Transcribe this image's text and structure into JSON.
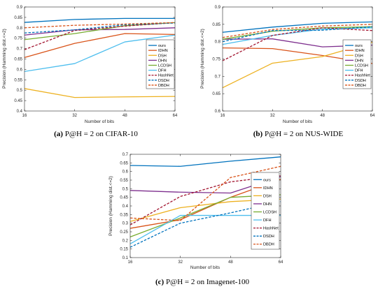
{
  "chart_data": [
    {
      "type": "line",
      "caption_letter": "(a)",
      "caption_text": " P@H = 2 on CIFAR-10",
      "xlabel": "Number of bits",
      "ylabel": "Precision (Hamming dist.<=2)",
      "x": [
        16,
        32,
        48,
        64
      ],
      "xticks": [
        "16",
        "32",
        "48",
        "64"
      ],
      "ylim": [
        0.4,
        0.9
      ],
      "yticks": [
        "0.4",
        "0.45",
        "0.5",
        "0.55",
        "0.6",
        "0.65",
        "0.7",
        "0.75",
        "0.8",
        "0.85",
        "0.9"
      ],
      "legend_position": "right",
      "series": [
        {
          "name": "ours",
          "color": "#0072bd",
          "dash": false,
          "values": [
            0.826,
            0.84,
            0.845,
            0.845
          ]
        },
        {
          "name": "IDHN",
          "color": "#d95319",
          "dash": false,
          "values": [
            0.657,
            0.725,
            0.772,
            0.768
          ]
        },
        {
          "name": "DSH",
          "color": "#edb120",
          "dash": false,
          "values": [
            0.508,
            0.465,
            0.468,
            0.47
          ]
        },
        {
          "name": "DHN",
          "color": "#7e2f8e",
          "dash": false,
          "values": [
            0.765,
            0.79,
            0.792,
            0.8
          ]
        },
        {
          "name": "LCDSH",
          "color": "#77ac30",
          "dash": false,
          "values": [
            0.743,
            0.772,
            0.81,
            0.825
          ]
        },
        {
          "name": "DFH",
          "color": "#4dbeee",
          "dash": false,
          "values": [
            0.59,
            0.628,
            0.732,
            0.765
          ]
        },
        {
          "name": "HashNet",
          "color": "#a2142f",
          "dash": true,
          "values": [
            0.695,
            0.787,
            0.808,
            0.825
          ]
        },
        {
          "name": "DSDH",
          "color": "#0072bd",
          "dash": true,
          "values": [
            0.775,
            0.79,
            0.815,
            0.823
          ]
        },
        {
          "name": "DBDH",
          "color": "#d95319",
          "dash": true,
          "values": [
            0.8,
            0.812,
            0.818,
            0.825
          ]
        }
      ]
    },
    {
      "type": "line",
      "caption_letter": "(b)",
      "caption_text": " P@H = 2 on NUS-WIDE",
      "xlabel": "Number of bits",
      "ylabel": "Precision (Hamming dist.<=2)",
      "x": [
        16,
        32,
        48,
        64
      ],
      "xticks": [
        "16",
        "32",
        "48",
        "64"
      ],
      "ylim": [
        0.6,
        0.9
      ],
      "yticks": [
        "0.6",
        "0.65",
        "0.7",
        "0.75",
        "0.8",
        "0.85",
        "0.9"
      ],
      "legend_position": "right",
      "series": [
        {
          "name": "ours",
          "color": "#0072bd",
          "dash": false,
          "values": [
            0.827,
            0.842,
            0.853,
            0.857
          ]
        },
        {
          "name": "IDHN",
          "color": "#d95319",
          "dash": false,
          "values": [
            0.782,
            0.78,
            0.76,
            0.737
          ]
        },
        {
          "name": "DSH",
          "color": "#edb120",
          "dash": false,
          "values": [
            0.667,
            0.738,
            0.757,
            0.798
          ]
        },
        {
          "name": "DHN",
          "color": "#7e2f8e",
          "dash": false,
          "values": [
            0.807,
            0.808,
            0.785,
            0.79
          ]
        },
        {
          "name": "LCDSH",
          "color": "#77ac30",
          "dash": false,
          "values": [
            0.807,
            0.83,
            0.84,
            0.843
          ]
        },
        {
          "name": "DFH",
          "color": "#4dbeee",
          "dash": false,
          "values": [
            0.792,
            0.818,
            0.836,
            0.84
          ]
        },
        {
          "name": "HashNet",
          "color": "#a2142f",
          "dash": true,
          "values": [
            0.745,
            0.818,
            0.84,
            0.832
          ]
        },
        {
          "name": "DSDH",
          "color": "#0072bd",
          "dash": true,
          "values": [
            0.8,
            0.832,
            0.833,
            0.843
          ]
        },
        {
          "name": "DBDH",
          "color": "#d95319",
          "dash": true,
          "values": [
            0.812,
            0.835,
            0.845,
            0.85
          ]
        }
      ]
    },
    {
      "type": "line",
      "caption_letter": "(c)",
      "caption_text": " P@H = 2 on Imagenet-100",
      "xlabel": "Number of bits",
      "ylabel": "Precision (Hamming dist.<=2)",
      "x": [
        16,
        32,
        48,
        64
      ],
      "xticks": [
        "16",
        "32",
        "48",
        "64"
      ],
      "ylim": [
        0.1,
        0.7
      ],
      "yticks": [
        "0.1",
        "0.15",
        "0.2",
        "0.25",
        "0.3",
        "0.35",
        "0.4",
        "0.45",
        "0.5",
        "0.55",
        "0.6",
        "0.65",
        "0.7"
      ],
      "legend_position": "right",
      "series": [
        {
          "name": "ours",
          "color": "#0072bd",
          "dash": false,
          "values": [
            0.635,
            0.63,
            0.66,
            0.685
          ]
        },
        {
          "name": "IDHN",
          "color": "#d95319",
          "dash": false,
          "values": [
            0.27,
            0.32,
            0.45,
            0.555
          ]
        },
        {
          "name": "DSH",
          "color": "#edb120",
          "dash": false,
          "values": [
            0.31,
            0.39,
            0.425,
            0.44
          ]
        },
        {
          "name": "DHN",
          "color": "#7e2f8e",
          "dash": false,
          "values": [
            0.49,
            0.48,
            0.475,
            0.57
          ]
        },
        {
          "name": "LCDSH",
          "color": "#77ac30",
          "dash": false,
          "values": [
            0.22,
            0.33,
            0.45,
            0.465
          ]
        },
        {
          "name": "DFH",
          "color": "#4dbeee",
          "dash": false,
          "values": [
            0.18,
            0.345,
            0.345,
            0.345
          ]
        },
        {
          "name": "HashNet",
          "color": "#a2142f",
          "dash": true,
          "values": [
            0.29,
            0.455,
            0.54,
            0.575
          ]
        },
        {
          "name": "DSDH",
          "color": "#0072bd",
          "dash": true,
          "values": [
            0.16,
            0.3,
            0.36,
            0.425
          ]
        },
        {
          "name": "DBDH",
          "color": "#d95319",
          "dash": true,
          "values": [
            0.33,
            0.315,
            0.565,
            0.63
          ]
        }
      ]
    }
  ]
}
